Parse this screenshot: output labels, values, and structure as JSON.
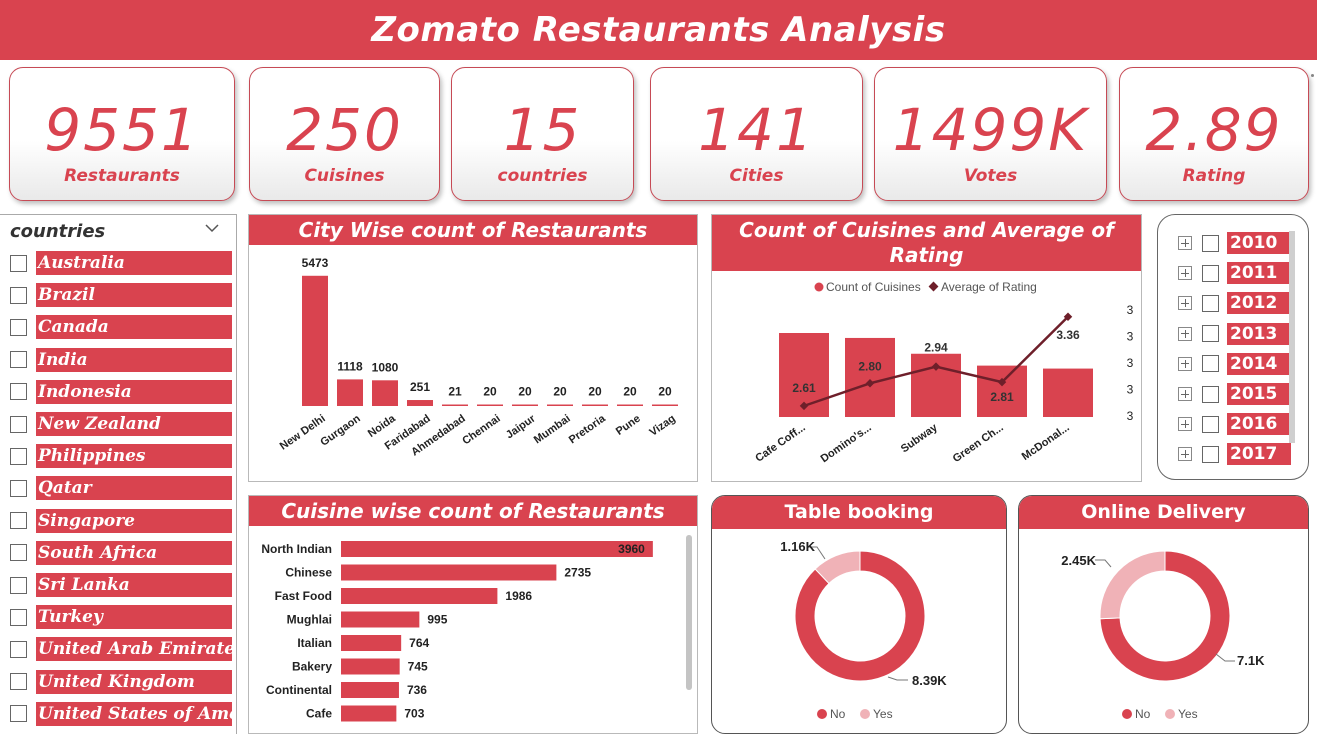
{
  "title": "Zomato Restaurants Analysis",
  "kpis": [
    {
      "value": "9551",
      "label": "Restaurants"
    },
    {
      "value": "250",
      "label": "Cuisines"
    },
    {
      "value": "15",
      "label": "countries"
    },
    {
      "value": "141",
      "label": "Cities"
    },
    {
      "value": "1499K",
      "label": "Votes"
    },
    {
      "value": "2.89",
      "label": "Rating"
    }
  ],
  "country_slicer": {
    "title": "countries",
    "items": [
      "Australia",
      "Brazil",
      "Canada",
      "India",
      "Indonesia",
      "New Zealand",
      "Philippines",
      "Qatar",
      "Singapore",
      "South Africa",
      "Sri Lanka",
      "Turkey",
      "United Arab Emirates",
      "United Kingdom",
      "United States of Ame..."
    ]
  },
  "year_slicer": {
    "items": [
      "2010",
      "2011",
      "2012",
      "2013",
      "2014",
      "2015",
      "2016",
      "2017"
    ]
  },
  "colors": {
    "accent": "#d9434f",
    "line": "#6e1f2a",
    "pie_light": "#f0b2b7"
  },
  "chart_data": [
    {
      "type": "bar",
      "title": "City Wise count of Restaurants",
      "categories": [
        "New Delhi",
        "Gurgaon",
        "Noida",
        "Faridabad",
        "Ahmedabad",
        "Chennai",
        "Jaipur",
        "Mumbai",
        "Pretoria",
        "Pune",
        "Vizag"
      ],
      "values": [
        5473,
        1118,
        1080,
        251,
        21,
        20,
        20,
        20,
        20,
        20,
        20
      ],
      "ylim": [
        0,
        5800
      ]
    },
    {
      "type": "bar",
      "title": "Count of Cuisines and Average of Rating by RestaurantName",
      "categories": [
        "Cafe Coff...",
        "Domino's...",
        "Subway",
        "Green Ch...",
        "McDonal..."
      ],
      "legend": [
        "Count of Cuisines",
        "Average of Rating"
      ],
      "series": [
        {
          "name": "Count of Cuisines",
          "values": [
            85,
            80,
            64,
            52,
            49
          ]
        },
        {
          "name": "Average of Rating",
          "values": [
            2.61,
            2.8,
            2.94,
            2.81,
            3.36
          ]
        }
      ],
      "y2_ticks": [
        "3",
        "3",
        "3",
        "3",
        "3"
      ]
    },
    {
      "type": "bar",
      "orientation": "horizontal",
      "title": "Cuisine wise count of Restaurants",
      "categories": [
        "North Indian",
        "Chinese",
        "Fast Food",
        "Mughlai",
        "Italian",
        "Bakery",
        "Continental",
        "Cafe"
      ],
      "values": [
        3960,
        2735,
        1986,
        995,
        764,
        745,
        736,
        703
      ],
      "xlim": [
        0,
        4000
      ]
    },
    {
      "type": "pie",
      "title": "Table booking",
      "labels": [
        "No",
        "Yes"
      ],
      "values": [
        8393,
        1158
      ],
      "data_labels": [
        "8.39K",
        "1.16K"
      ]
    },
    {
      "type": "pie",
      "title": "Online Delivery",
      "labels": [
        "No",
        "Yes"
      ],
      "values": [
        7100,
        2451
      ],
      "data_labels": [
        "7.1K",
        "2.45K"
      ]
    }
  ]
}
